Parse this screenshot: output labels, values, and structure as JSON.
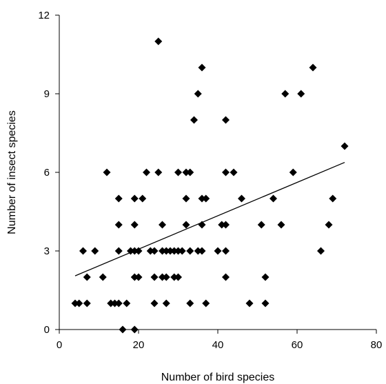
{
  "chart_data": {
    "type": "scatter",
    "title": "",
    "xlabel": "Number of bird species",
    "ylabel": "Number of insect species",
    "xlim": [
      0,
      80
    ],
    "ylim": [
      0,
      12
    ],
    "xticks": [
      "0",
      "20",
      "40",
      "60",
      "80"
    ],
    "yticks": [
      "0",
      "3",
      "6",
      "9",
      "12"
    ],
    "grid": false,
    "legend": "none",
    "marker": "diamond",
    "marker_color": "#000000",
    "trendline": {
      "type": "linear",
      "x": [
        4,
        72
      ],
      "y": [
        2.05,
        6.38
      ]
    },
    "points": [
      [
        4,
        1
      ],
      [
        5,
        1
      ],
      [
        6,
        3
      ],
      [
        7,
        2
      ],
      [
        7,
        1
      ],
      [
        9,
        3
      ],
      [
        11,
        2
      ],
      [
        12,
        6
      ],
      [
        13,
        1
      ],
      [
        14,
        1
      ],
      [
        15,
        3
      ],
      [
        15,
        1
      ],
      [
        15,
        4
      ],
      [
        15,
        5
      ],
      [
        16,
        0
      ],
      [
        17,
        1
      ],
      [
        18,
        3
      ],
      [
        19,
        0
      ],
      [
        19,
        2
      ],
      [
        19,
        3
      ],
      [
        19,
        4
      ],
      [
        19,
        5
      ],
      [
        20,
        2
      ],
      [
        20,
        3
      ],
      [
        21,
        5
      ],
      [
        22,
        6
      ],
      [
        23,
        3
      ],
      [
        24,
        1
      ],
      [
        24,
        2
      ],
      [
        24,
        3
      ],
      [
        25,
        11
      ],
      [
        25,
        6
      ],
      [
        26,
        2
      ],
      [
        26,
        3
      ],
      [
        26,
        4
      ],
      [
        27,
        1
      ],
      [
        27,
        2
      ],
      [
        27,
        3
      ],
      [
        28,
        3
      ],
      [
        29,
        2
      ],
      [
        29,
        3
      ],
      [
        30,
        2
      ],
      [
        30,
        3
      ],
      [
        30,
        6
      ],
      [
        31,
        3
      ],
      [
        32,
        6
      ],
      [
        32,
        4
      ],
      [
        32,
        5
      ],
      [
        33,
        6
      ],
      [
        33,
        3
      ],
      [
        33,
        1
      ],
      [
        34,
        8
      ],
      [
        35,
        9
      ],
      [
        35,
        3
      ],
      [
        36,
        10
      ],
      [
        36,
        5
      ],
      [
        36,
        4
      ],
      [
        36,
        3
      ],
      [
        37,
        5
      ],
      [
        37,
        1
      ],
      [
        40,
        3
      ],
      [
        41,
        4
      ],
      [
        42,
        3
      ],
      [
        42,
        6
      ],
      [
        42,
        8
      ],
      [
        42,
        4
      ],
      [
        42,
        2
      ],
      [
        44,
        6
      ],
      [
        46,
        5
      ],
      [
        48,
        1
      ],
      [
        51,
        4
      ],
      [
        52,
        2
      ],
      [
        52,
        1
      ],
      [
        54,
        5
      ],
      [
        56,
        4
      ],
      [
        57,
        9
      ],
      [
        59,
        6
      ],
      [
        61,
        9
      ],
      [
        64,
        10
      ],
      [
        66,
        3
      ],
      [
        68,
        4
      ],
      [
        69,
        5
      ],
      [
        72,
        7
      ]
    ]
  }
}
